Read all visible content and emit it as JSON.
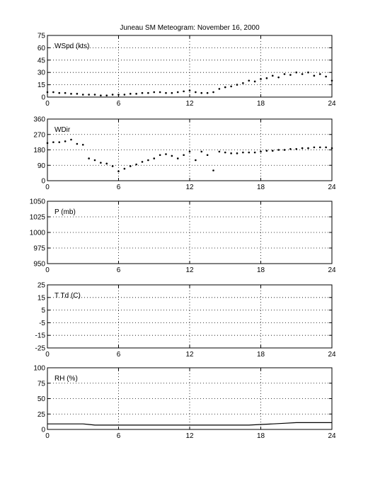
{
  "title": "Juneau SM Meteogram:   November 16, 2000",
  "x_ticks": [
    "0",
    "6",
    "12",
    "18",
    "24"
  ],
  "chart_data": [
    {
      "type": "scatter",
      "label": "WSpd (kts)",
      "xlim": [
        0,
        24
      ],
      "ylim": [
        0,
        75
      ],
      "yticks": [
        "0",
        "15",
        "30",
        "45",
        "60",
        "75"
      ],
      "grid": true,
      "series": [
        {
          "x": [
            0,
            0.5,
            1,
            1.5,
            2,
            2.5,
            3,
            3.5,
            4,
            4.5,
            5,
            5.5,
            6,
            6.5,
            7,
            7.5,
            8,
            8.5,
            9,
            9.5,
            10,
            10.5,
            11,
            11.5,
            12,
            12.5,
            13,
            13.5,
            14,
            14.5,
            15,
            15.5,
            16,
            16.5,
            17,
            17.5,
            18,
            18.5,
            19,
            19.5,
            20,
            20.5,
            21,
            21.5,
            22,
            22.5,
            23,
            23.5,
            24
          ],
          "y": [
            6,
            6,
            5,
            5,
            4,
            4,
            3,
            3,
            3,
            2,
            2,
            3,
            3,
            3,
            4,
            4,
            5,
            5,
            6,
            6,
            5,
            5,
            6,
            7,
            8,
            6,
            5,
            5,
            6,
            10,
            12,
            13,
            15,
            17,
            20,
            19,
            22,
            23,
            26,
            24,
            28,
            27,
            30,
            28,
            30,
            26,
            28,
            25,
            20
          ]
        }
      ]
    },
    {
      "type": "scatter",
      "label": "WDir",
      "xlim": [
        0,
        24
      ],
      "ylim": [
        0,
        360
      ],
      "yticks": [
        "0",
        "90",
        "180",
        "270",
        "360"
      ],
      "grid": true,
      "series": [
        {
          "x": [
            0,
            0.5,
            1,
            1.5,
            2,
            2.5,
            3,
            3.5,
            4,
            4.5,
            5,
            5.5,
            6,
            6.5,
            7,
            7.5,
            8,
            8.5,
            9,
            9.5,
            10,
            10.5,
            11,
            11.5,
            12,
            12.5,
            13,
            13.5,
            14,
            14.5,
            15,
            15.5,
            16,
            16.5,
            17,
            17.5,
            18,
            18.5,
            19,
            19.5,
            20,
            20.5,
            21,
            21.5,
            22,
            22.5,
            23,
            23.5,
            24
          ],
          "y": [
            220,
            225,
            225,
            230,
            240,
            215,
            210,
            130,
            120,
            105,
            100,
            85,
            55,
            70,
            85,
            95,
            110,
            120,
            130,
            150,
            155,
            145,
            130,
            150,
            170,
            120,
            170,
            150,
            60,
            170,
            165,
            160,
            160,
            165,
            165,
            165,
            170,
            175,
            175,
            180,
            180,
            185,
            185,
            190,
            190,
            195,
            195,
            195,
            190
          ]
        }
      ]
    },
    {
      "type": "line",
      "label": "P (mb)",
      "xlim": [
        0,
        24
      ],
      "ylim": [
        950,
        1050
      ],
      "yticks": [
        "950",
        "975",
        "1000",
        "1025",
        "1050"
      ],
      "grid": true,
      "series": []
    },
    {
      "type": "line",
      "label": "T Td (C)",
      "xlim": [
        0,
        24
      ],
      "ylim": [
        -25,
        25
      ],
      "yticks": [
        "-25",
        "-15",
        "-5",
        "5",
        "15",
        "25"
      ],
      "grid": true,
      "series": []
    },
    {
      "type": "line",
      "label": "RH (%)",
      "xlim": [
        0,
        24
      ],
      "ylim": [
        0,
        100
      ],
      "yticks": [
        "0",
        "25",
        "50",
        "75",
        "100"
      ],
      "grid": true,
      "series": [
        {
          "x": [
            0,
            1,
            2,
            3,
            3.5,
            4,
            5,
            6,
            8,
            10,
            12,
            14,
            16,
            17,
            18,
            19,
            20,
            21,
            22,
            23,
            24
          ],
          "y": [
            9,
            9,
            9,
            9,
            8,
            7,
            7,
            7,
            7,
            7,
            7,
            7,
            7,
            7,
            8,
            9,
            10,
            11,
            11,
            11,
            11
          ]
        }
      ]
    }
  ]
}
